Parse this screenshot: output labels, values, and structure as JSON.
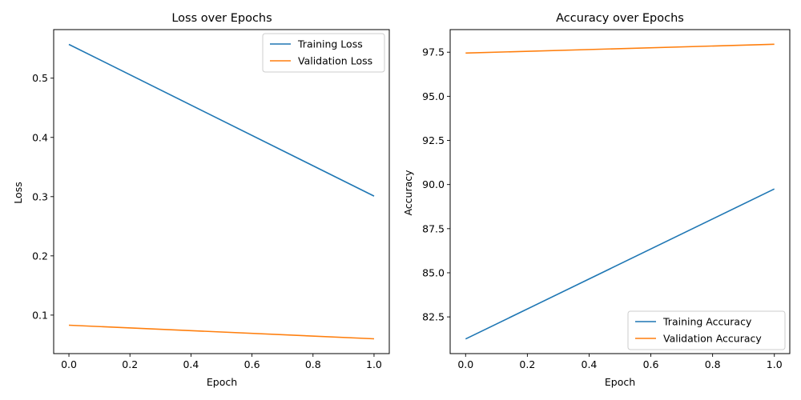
{
  "chart_data": [
    {
      "type": "line",
      "title": "Loss over Epochs",
      "xlabel": "Epoch",
      "ylabel": "Loss",
      "xlim": [
        -0.05,
        1.05
      ],
      "ylim": [
        0.035,
        0.582
      ],
      "xticks": [
        "0.0",
        "0.2",
        "0.4",
        "0.6",
        "0.8",
        "1.0"
      ],
      "yticks": [
        "0.1",
        "0.2",
        "0.3",
        "0.4",
        "0.5"
      ],
      "legend_position": "top-right",
      "grid": false,
      "series": [
        {
          "name": "Training Loss",
          "color": "#1f77b4",
          "x": [
            0,
            1
          ],
          "y": [
            0.557,
            0.301
          ]
        },
        {
          "name": "Validation Loss",
          "color": "#ff7f0e",
          "x": [
            0,
            1
          ],
          "y": [
            0.083,
            0.06
          ]
        }
      ]
    },
    {
      "type": "line",
      "title": "Accuracy over Epochs",
      "xlabel": "Epoch",
      "ylabel": "Accuracy",
      "xlim": [
        -0.05,
        1.05
      ],
      "ylim": [
        80.42,
        98.78
      ],
      "xticks": [
        "0.0",
        "0.2",
        "0.4",
        "0.6",
        "0.8",
        "1.0"
      ],
      "yticks": [
        "82.5",
        "85.0",
        "87.5",
        "90.0",
        "92.5",
        "95.0",
        "97.5"
      ],
      "legend_position": "bottom-right",
      "grid": false,
      "series": [
        {
          "name": "Training Accuracy",
          "color": "#1f77b4",
          "x": [
            0,
            1
          ],
          "y": [
            81.25,
            89.75
          ]
        },
        {
          "name": "Validation Accuracy",
          "color": "#ff7f0e",
          "x": [
            0,
            1
          ],
          "y": [
            97.45,
            97.95
          ]
        }
      ]
    }
  ]
}
